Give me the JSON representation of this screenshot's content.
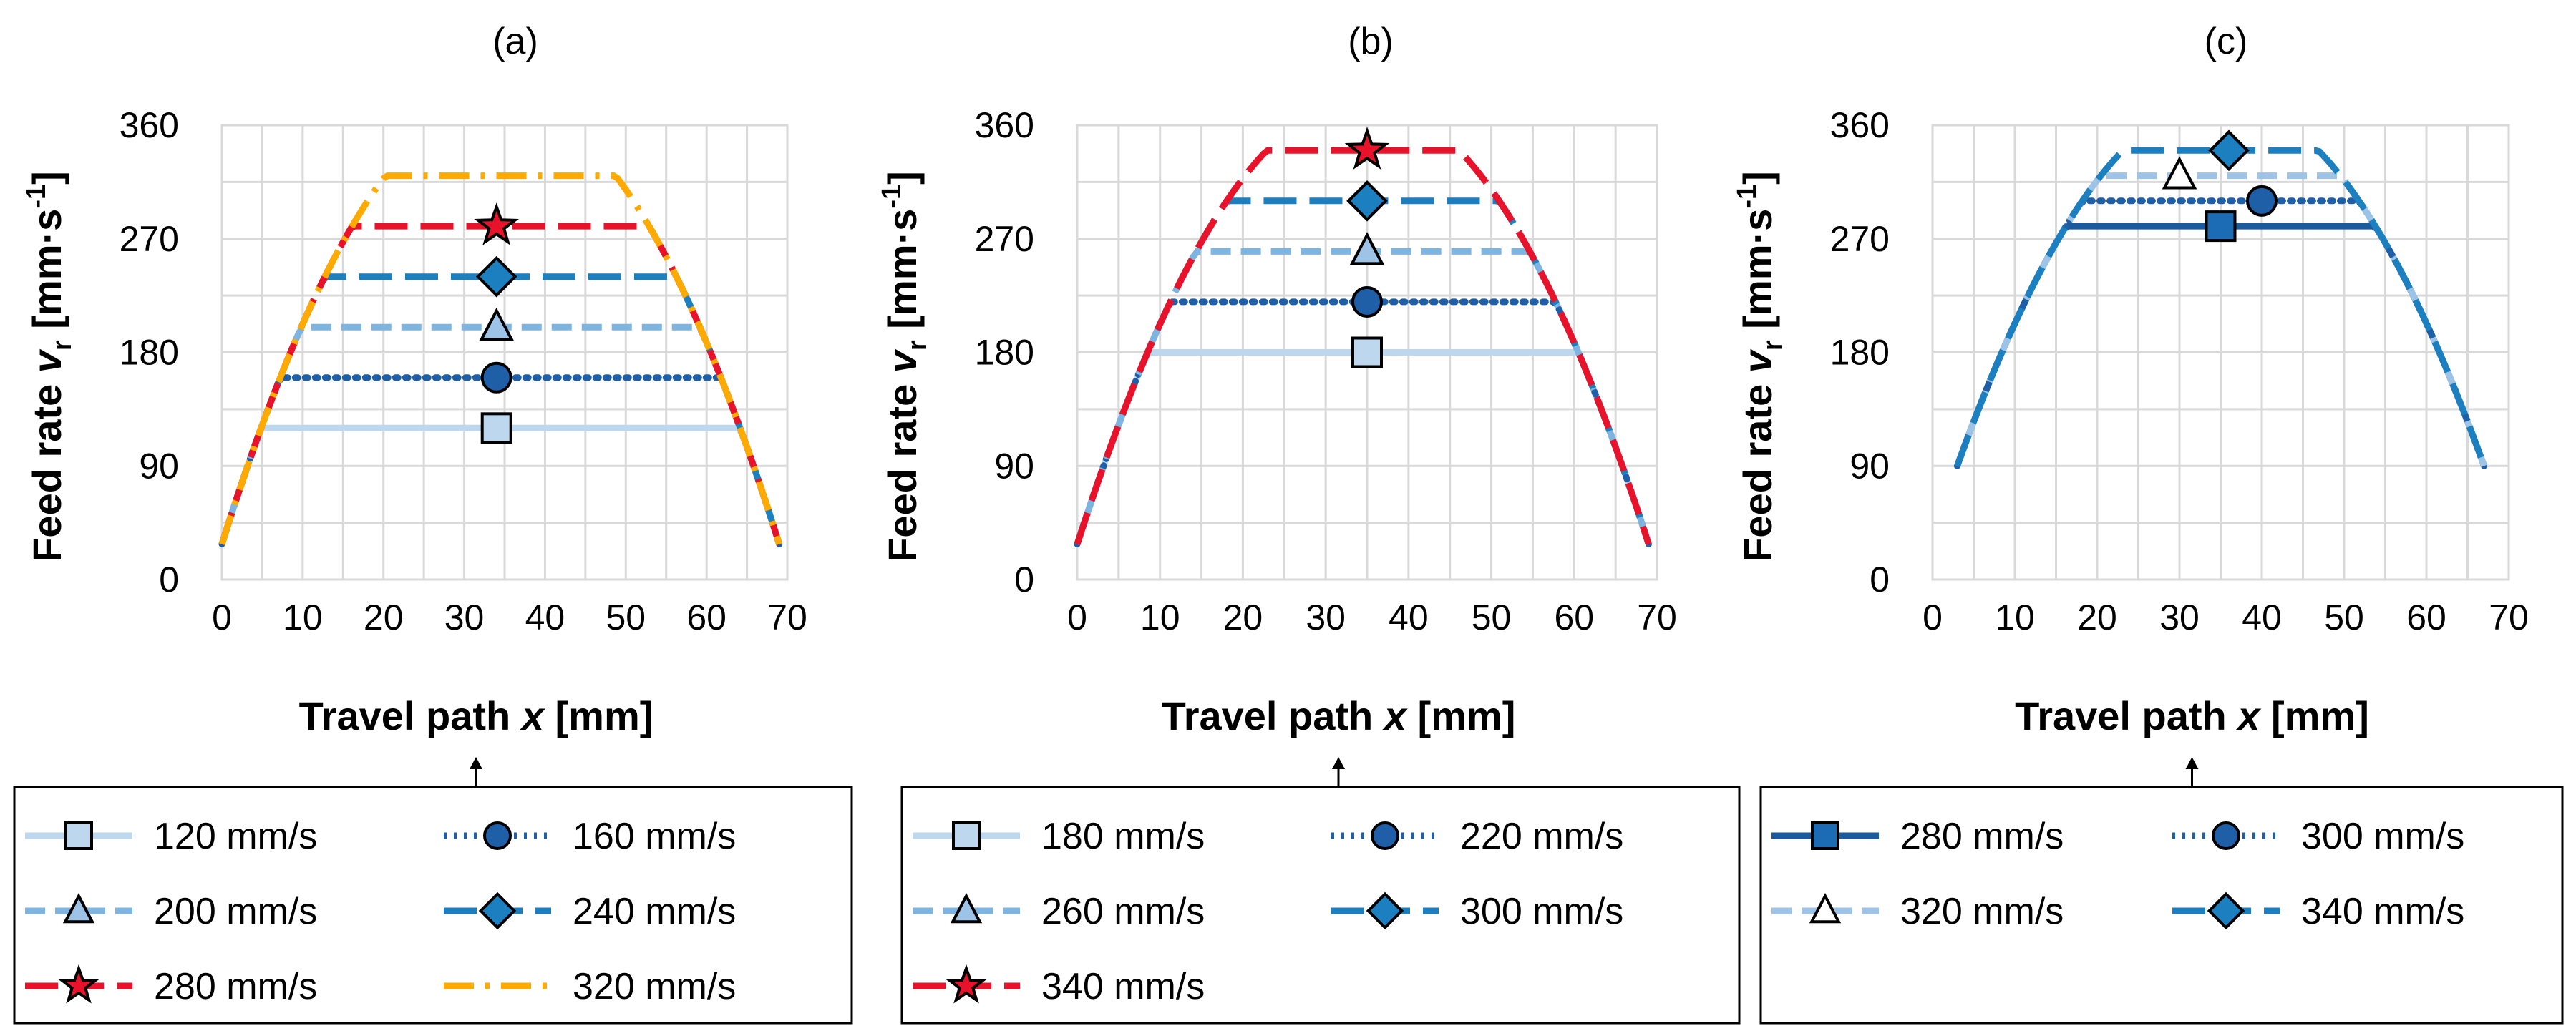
{
  "chart_data": [
    {
      "type": "line",
      "title": "(a)",
      "xlabel": "Travel path x [mm]",
      "ylabel": "Feed rate vr [mm·s-1]",
      "xlim": [
        0,
        70
      ],
      "ylim": [
        0,
        360
      ],
      "xticks": [
        "0",
        "10",
        "20",
        "30",
        "40",
        "50",
        "60",
        "70"
      ],
      "yticks": [
        "0",
        "90",
        "180",
        "270",
        "360"
      ],
      "grid": true,
      "legend_position": "below",
      "x_start": 0,
      "x_end": 69,
      "series": [
        {
          "name": "120 mm/s",
          "plateau": 120,
          "marker": "square",
          "marker_x": 34,
          "color": "#bdd7ee",
          "dash": "solid",
          "marker_fill": "#bdd7ee"
        },
        {
          "name": "160 mm/s",
          "plateau": 160,
          "marker": "circle",
          "marker_x": 34,
          "color": "#1f5fa8",
          "dash": "dot",
          "marker_fill": "#1f5fa8"
        },
        {
          "name": "200 mm/s",
          "plateau": 200,
          "marker": "triangle",
          "marker_x": 34,
          "color": "#7db4e0",
          "dash": "dash",
          "marker_fill": "#9dc3e6"
        },
        {
          "name": "240 mm/s",
          "plateau": 240,
          "marker": "diamond",
          "marker_x": 34,
          "color": "#1c7fbf",
          "dash": "longdash",
          "marker_fill": "#1c7fbf"
        },
        {
          "name": "280 mm/s",
          "plateau": 280,
          "marker": "star",
          "marker_x": 34,
          "color": "#e8132a",
          "dash": "longdash",
          "marker_fill": "#e8132a"
        },
        {
          "name": "320 mm/s",
          "plateau": 320,
          "marker": "none",
          "color": "#ffaa00",
          "dash": "dashdot",
          "marker_fill": "#ffaa00"
        }
      ]
    },
    {
      "type": "line",
      "title": "(b)",
      "xlabel": "Travel path x [mm]",
      "ylabel": "Feed rate vr [mm·s-1]",
      "xlim": [
        0,
        70
      ],
      "ylim": [
        0,
        360
      ],
      "xticks": [
        "0",
        "10",
        "20",
        "30",
        "40",
        "50",
        "60",
        "70"
      ],
      "yticks": [
        "0",
        "90",
        "180",
        "270",
        "360"
      ],
      "grid": true,
      "legend_position": "below",
      "x_start": 0,
      "x_end": 69,
      "series": [
        {
          "name": "180 mm/s",
          "plateau": 180,
          "marker": "square",
          "marker_x": 35,
          "color": "#bdd7ee",
          "dash": "solid",
          "marker_fill": "#bdd7ee"
        },
        {
          "name": "220 mm/s",
          "plateau": 220,
          "marker": "circle",
          "marker_x": 35,
          "color": "#1f5fa8",
          "dash": "dot",
          "marker_fill": "#1f5fa8"
        },
        {
          "name": "260 mm/s",
          "plateau": 260,
          "marker": "triangle",
          "marker_x": 35,
          "color": "#7db4e0",
          "dash": "dash",
          "marker_fill": "#9dc3e6"
        },
        {
          "name": "300 mm/s",
          "plateau": 300,
          "marker": "diamond",
          "marker_x": 35,
          "color": "#1c7fbf",
          "dash": "longdash",
          "marker_fill": "#1c7fbf"
        },
        {
          "name": "340 mm/s",
          "plateau": 340,
          "marker": "star",
          "marker_x": 35,
          "color": "#e8132a",
          "dash": "longdash",
          "marker_fill": "#e8132a"
        }
      ]
    },
    {
      "type": "line",
      "title": "(c)",
      "xlabel": "Travel path x [mm]",
      "ylabel": "Feed rate vr [mm·s-1]",
      "xlim": [
        0,
        70
      ],
      "ylim": [
        0,
        360
      ],
      "xticks": [
        "0",
        "10",
        "20",
        "30",
        "40",
        "50",
        "60",
        "70"
      ],
      "yticks": [
        "0",
        "90",
        "180",
        "270",
        "360"
      ],
      "grid": true,
      "legend_position": "below",
      "x_start": 3,
      "x_end": 67,
      "series": [
        {
          "name": "280 mm/s",
          "plateau": 280,
          "marker": "square",
          "marker_x": 35,
          "color": "#1a5a9e",
          "dash": "solid",
          "marker_fill": "#1c6bb5"
        },
        {
          "name": "300 mm/s",
          "plateau": 300,
          "marker": "circle",
          "marker_x": 40,
          "color": "#1f5fa8",
          "dash": "dot",
          "marker_fill": "#1f5fa8"
        },
        {
          "name": "320 mm/s",
          "plateau": 320,
          "marker": "triangle",
          "marker_x": 30,
          "color": "#9dc3e6",
          "dash": "dash",
          "marker_fill": "#ffffff"
        },
        {
          "name": "340 mm/s",
          "plateau": 340,
          "marker": "diamond",
          "marker_x": 36,
          "color": "#1c7fbf",
          "dash": "longdash",
          "marker_fill": "#1c7fbf"
        }
      ]
    }
  ]
}
